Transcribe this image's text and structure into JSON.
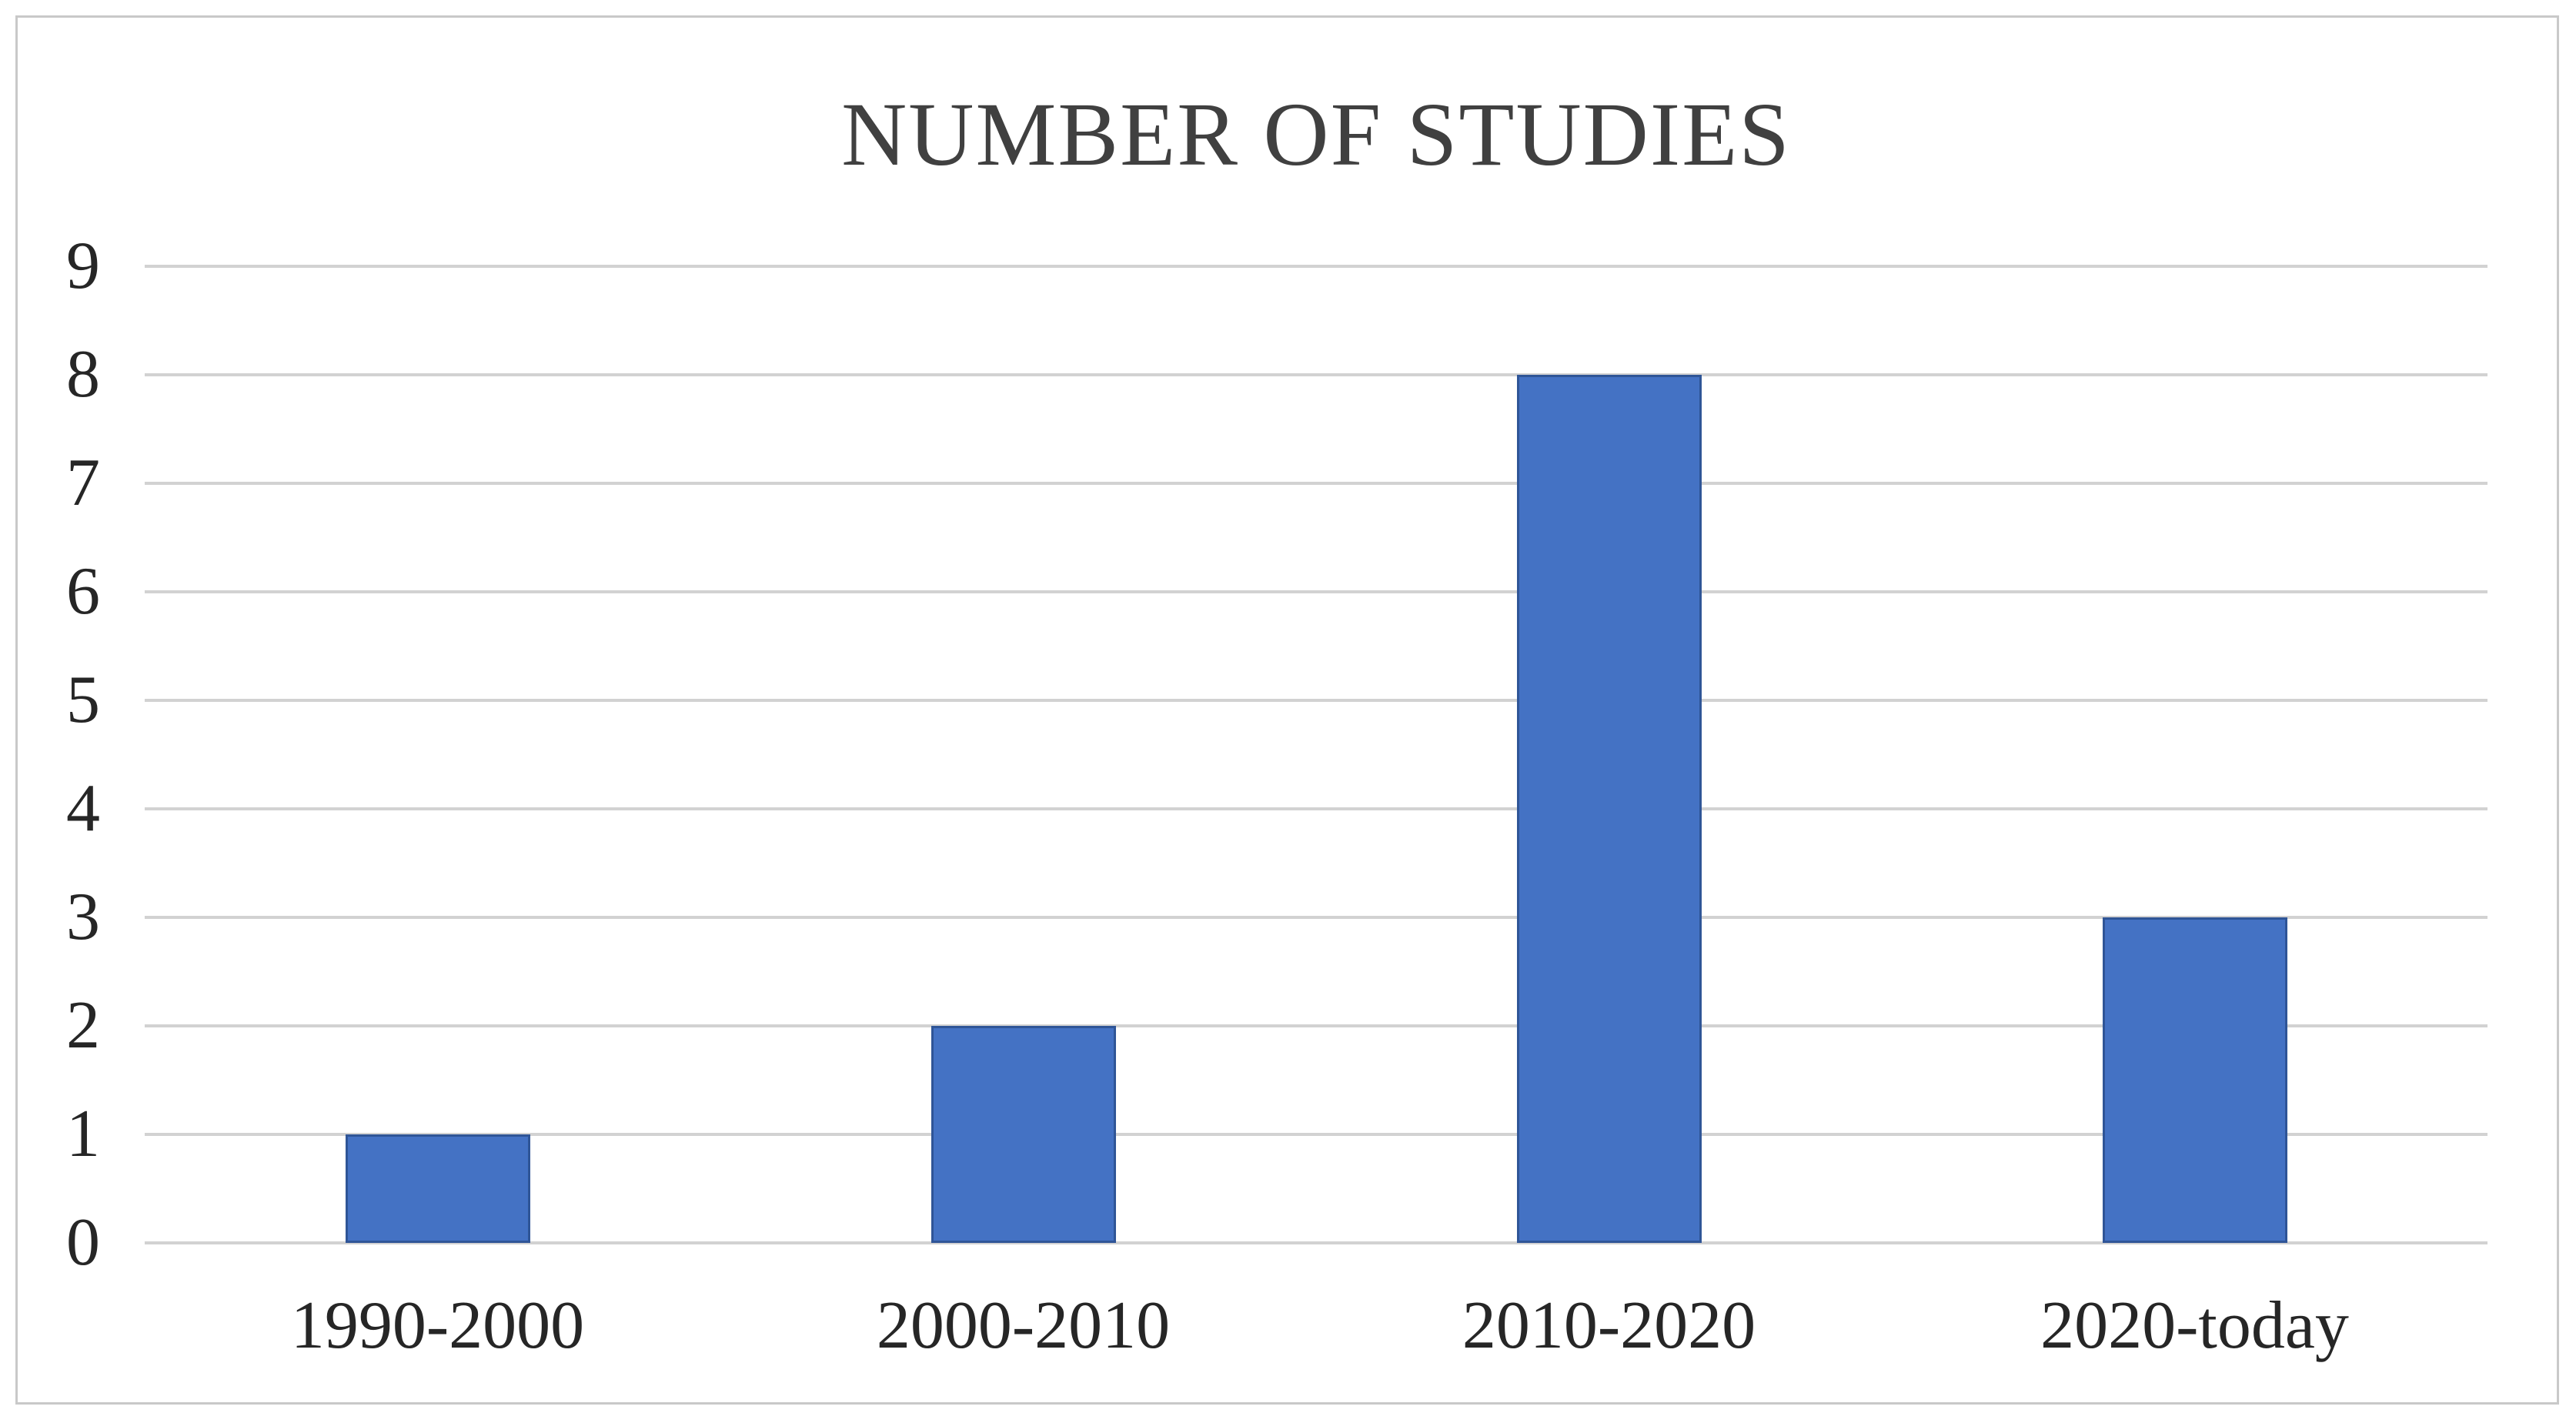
{
  "chart_data": {
    "type": "bar",
    "title": "NUMBER OF STUDIES",
    "categories": [
      "1990-2000",
      "2000-2010",
      "2010-2020",
      "2020-today"
    ],
    "values": [
      1,
      2,
      8,
      3
    ],
    "xlabel": "",
    "ylabel": "",
    "ylim": [
      0,
      9
    ],
    "yticks": [
      0,
      1,
      2,
      3,
      4,
      5,
      6,
      7,
      8,
      9
    ],
    "grid": true,
    "legend": "none",
    "data_labels": "none"
  },
  "colors": {
    "bar_fill": "#4472C4",
    "bar_border": "#2F5597",
    "gridline": "#D2D2D2",
    "frame_border": "#C9C9C9",
    "title_text": "#404040",
    "axis_text": "#262626",
    "background": "#FFFFFF"
  }
}
